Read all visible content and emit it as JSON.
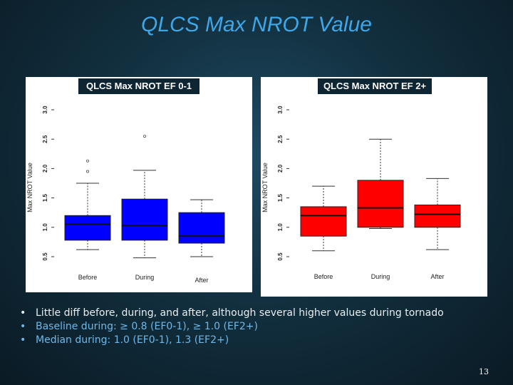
{
  "slide": {
    "title": "QLCS Max NROT Value",
    "page_number": "13"
  },
  "bullets": [
    {
      "marker": "•",
      "text": "Little diff before, during, and after, although several higher values during tornado"
    },
    {
      "marker": "•",
      "text": "Baseline during:  ≥ 0.8 (EF0-1), ≥ 1.0 (EF2+)"
    },
    {
      "marker": "•",
      "text": "Median during:  1.0 (EF0-1), 1.3 (EF2+)"
    }
  ],
  "colors": {
    "title": "#3fa6e8",
    "ef01_fill": "#0000ff",
    "ef2_fill": "#ff0000",
    "bullet_primary": "#e8eef2",
    "bullet_accent": "#6fb8ea"
  },
  "chart_data": [
    {
      "type": "boxplot",
      "title": "QLCS Max NROT EF 0-1",
      "ylabel": "Max NROT Value",
      "xlabel": "",
      "ylim": [
        0.5,
        3.0
      ],
      "yticks": [
        "0.5",
        "1.0",
        "1.5",
        "2.0",
        "2.5",
        "3.0"
      ],
      "categories": [
        "Before",
        "During",
        "After"
      ],
      "fill": "#0000ff",
      "boxes": [
        {
          "label": "Before",
          "whisker_low": 0.62,
          "q1": 0.78,
          "median": 1.05,
          "q3": 1.2,
          "whisker_high": 1.75,
          "outliers": [
            1.95,
            2.13
          ]
        },
        {
          "label": "During",
          "whisker_low": 0.48,
          "q1": 0.78,
          "median": 1.03,
          "q3": 1.48,
          "whisker_high": 1.97,
          "outliers": [
            2.55
          ]
        },
        {
          "label": "After",
          "whisker_low": 0.5,
          "q1": 0.73,
          "median": 0.85,
          "q3": 1.25,
          "whisker_high": 1.47,
          "outliers": []
        }
      ]
    },
    {
      "type": "boxplot",
      "title": "QLCS Max NROT EF 2+",
      "ylabel": "Max NROT Value",
      "xlabel": "",
      "ylim": [
        0.5,
        3.0
      ],
      "yticks": [
        "0.5",
        "1.0",
        "1.5",
        "2.0",
        "2.5",
        "3.0"
      ],
      "categories": [
        "Before",
        "During",
        "After"
      ],
      "fill": "#ff0000",
      "boxes": [
        {
          "label": "Before",
          "whisker_low": 0.6,
          "q1": 0.85,
          "median": 1.2,
          "q3": 1.35,
          "whisker_high": 1.7,
          "outliers": []
        },
        {
          "label": "During",
          "whisker_low": 0.98,
          "q1": 1.0,
          "median": 1.33,
          "q3": 1.8,
          "whisker_high": 2.5,
          "outliers": []
        },
        {
          "label": "After",
          "whisker_low": 0.62,
          "q1": 1.0,
          "median": 1.22,
          "q3": 1.38,
          "whisker_high": 1.83,
          "outliers": []
        }
      ]
    }
  ]
}
